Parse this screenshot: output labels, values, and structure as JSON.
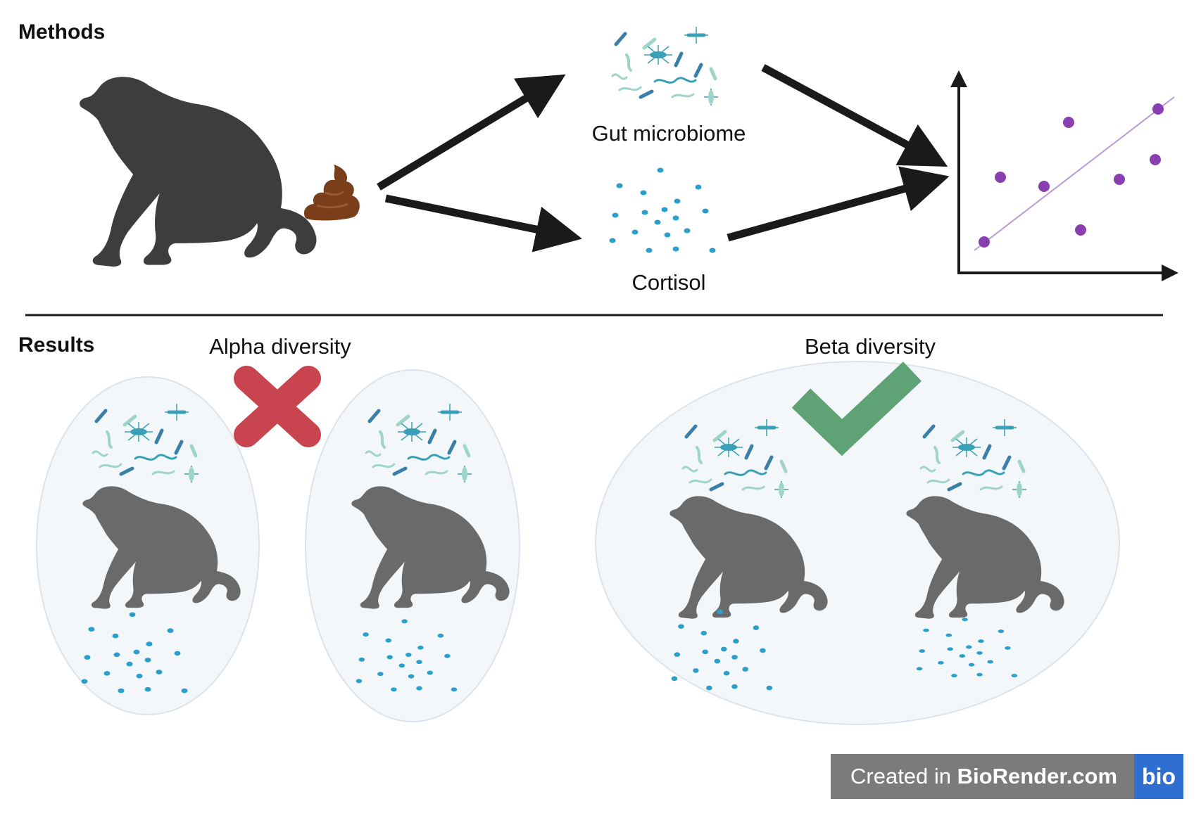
{
  "methods": {
    "title": "Methods",
    "gut_label": "Gut microbiome",
    "cortisol_label": "Cortisol"
  },
  "results": {
    "title": "Results",
    "alpha_label": "Alpha diversity",
    "beta_label": "Beta diversity"
  },
  "badge": {
    "prefix": "Created in ",
    "brand": "BioRender.com",
    "logo": "bio"
  },
  "colors": {
    "silhouette_dark": "#3d3d3d",
    "silhouette_grey": "#6a6a6a",
    "arrow": "#1a1a1a",
    "scatter_point": "#8a3fb0",
    "trend_line": "#b89bd6",
    "cortisol_dot": "#2a9fcc",
    "microbe_teal": "#3aa0b8",
    "microbe_light": "#9fd4c8",
    "cross": "#c8444f",
    "check": "#5fa276",
    "poop": "#7a3e1b",
    "ellipse_fill": "#f4f7fa",
    "ellipse_stroke": "#dde3ea"
  },
  "icons": [
    "chimpanzee-icon",
    "poop-icon",
    "bacteria-icon",
    "cortisol-icon",
    "cross-icon",
    "check-icon"
  ]
}
